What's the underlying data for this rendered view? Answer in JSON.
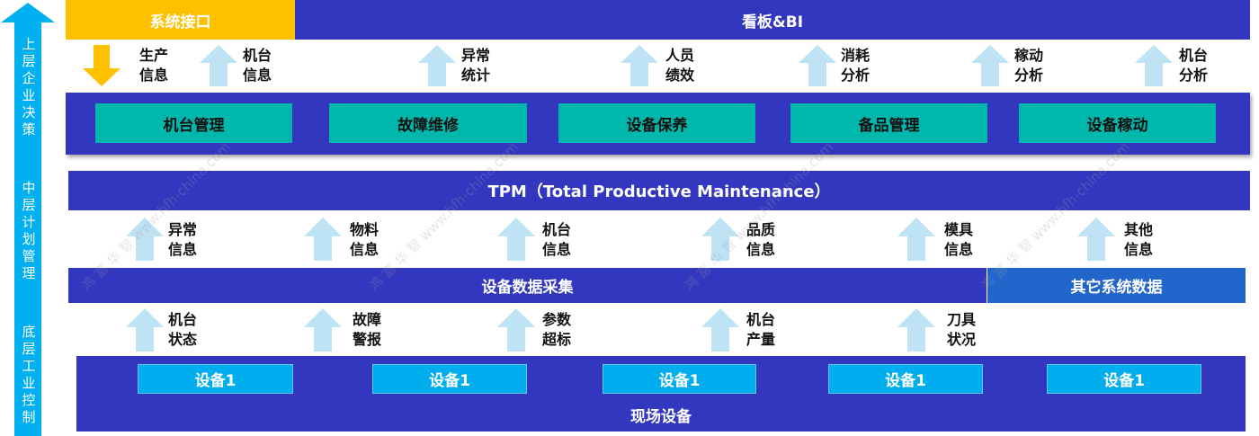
{
  "side_axis": {
    "levels": [
      "上层企业决策",
      "中层计划管理",
      "底层工业控制"
    ],
    "color": "#00B0F0"
  },
  "top": {
    "interface": "系统接口",
    "dashboard": "看板&BI"
  },
  "row1_arrows": [
    {
      "direction": "down",
      "label": [
        "生产",
        "信息"
      ]
    },
    {
      "direction": "up",
      "label": [
        "机台",
        "信息"
      ]
    },
    {
      "direction": "up",
      "label": [
        "异常",
        "统计"
      ]
    },
    {
      "direction": "up",
      "label": [
        "人员",
        "绩效"
      ]
    },
    {
      "direction": "up",
      "label": [
        "消耗",
        "分析"
      ]
    },
    {
      "direction": "up",
      "label": [
        "稼动",
        "分析"
      ]
    },
    {
      "direction": "up",
      "label": [
        "机台",
        "分析"
      ]
    }
  ],
  "modules": [
    "机台管理",
    "故障维修",
    "设备保养",
    "备品管理",
    "设备稼动"
  ],
  "tpm": "TPM（Total Productive Maintenance）",
  "row2_arrows": [
    [
      "异常",
      "信息"
    ],
    [
      "物料",
      "信息"
    ],
    [
      "机台",
      "信息"
    ],
    [
      "品质",
      "信息"
    ],
    [
      "模具",
      "信息"
    ],
    [
      "其他",
      "信息"
    ]
  ],
  "collection": {
    "main": "设备数据采集",
    "other": "其它系统数据"
  },
  "row3_arrows": [
    [
      "机台",
      "状态"
    ],
    [
      "故障",
      "警报"
    ],
    [
      "参数",
      "超标"
    ],
    [
      "机台",
      "产量"
    ],
    [
      "刀具",
      "状况"
    ]
  ],
  "devices": [
    "设备1",
    "设备1",
    "设备1",
    "设备1",
    "设备1"
  ],
  "field": "现场设备",
  "watermark": "鸿 富 华 智  www.hfh-china.com",
  "colors": {
    "primary": "#3337BF",
    "teal": "#00B7AC",
    "orange": "#FFC000",
    "arrow_light": "#BDE3F5",
    "cyan": "#00ADEF",
    "other_bar": "#2266CC"
  }
}
